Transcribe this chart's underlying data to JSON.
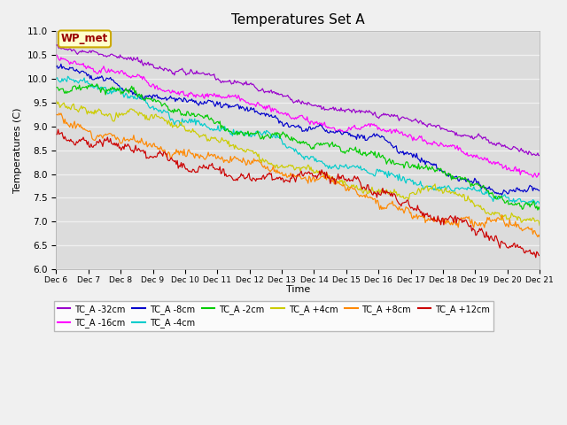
{
  "title": "Temperatures Set A",
  "xlabel": "Time",
  "ylabel": "Temperatures (C)",
  "ylim": [
    6.0,
    11.0
  ],
  "xlim_days": 15,
  "xtick_labels": [
    "Dec 6",
    "Dec 7",
    "Dec 8",
    "Dec 9",
    "Dec 10",
    "Dec 11",
    "Dec 12",
    "Dec 13",
    "Dec 14",
    "Dec 15",
    "Dec 16",
    "Dec 17",
    "Dec 18",
    "Dec 19",
    "Dec 20",
    "Dec 21"
  ],
  "series_names": [
    "TC_A -32cm",
    "TC_A -16cm",
    "TC_A -8cm",
    "TC_A -4cm",
    "TC_A -2cm",
    "TC_A +4cm",
    "TC_A +8cm",
    "TC_A +12cm"
  ],
  "start_temps": [
    10.68,
    10.48,
    10.25,
    10.0,
    9.82,
    9.5,
    9.28,
    8.88
  ],
  "end_temps": [
    8.38,
    7.97,
    7.65,
    7.38,
    7.27,
    6.95,
    6.68,
    6.28
  ],
  "noise_scales": [
    0.025,
    0.028,
    0.03,
    0.032,
    0.033,
    0.035,
    0.038,
    0.042
  ],
  "seeds": [
    10,
    20,
    30,
    40,
    50,
    60,
    70,
    80
  ],
  "colors": [
    "#9900cc",
    "#ff00ff",
    "#0000cc",
    "#00cccc",
    "#00cc00",
    "#cccc00",
    "#ff8800",
    "#cc0000"
  ],
  "legend_label": "WP_met",
  "bg_color": "#dcdcdc",
  "grid_color": "#f0f0f0",
  "fig_bg": "#f0f0f0",
  "title_fontsize": 11,
  "n_points": 500,
  "legend_ncol": 6,
  "legend_ncol2": 2
}
